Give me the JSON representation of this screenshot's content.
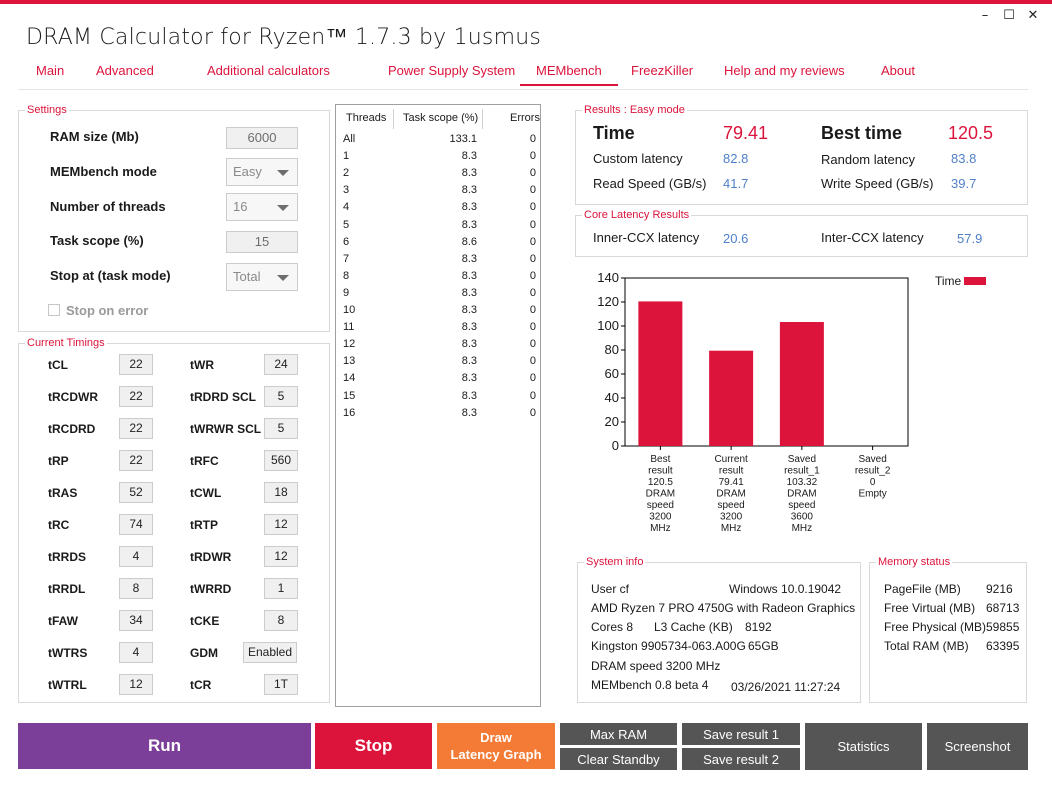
{
  "window": {
    "title": "DRAM Calculator for Ryzen™ 1.7.3 by 1usmus",
    "minimize_glyph": "–",
    "maximize_glyph": "☐",
    "close_glyph": "✕"
  },
  "tabs": [
    {
      "label": "Main"
    },
    {
      "label": "Advanced"
    },
    {
      "label": "Additional calculators"
    },
    {
      "label": "Power Supply System"
    },
    {
      "label": "MEMbench",
      "active": true
    },
    {
      "label": "FreezKiller"
    },
    {
      "label": "Help and my reviews"
    },
    {
      "label": "About"
    }
  ],
  "settings": {
    "title": "Settings",
    "ram_size_label": "RAM size (Mb)",
    "ram_size_value": "6000",
    "mode_label": "MEMbench mode",
    "mode_value": "Easy",
    "threads_label": "Number of threads",
    "threads_value": "16",
    "task_scope_label": "Task scope (%)",
    "task_scope_value": "15",
    "stop_at_label": "Stop at (task mode)",
    "stop_at_value": "Total",
    "stop_on_error_label": "Stop on error",
    "stop_on_error_checked": false
  },
  "timings": {
    "title": "Current Timings",
    "left": [
      {
        "name": "tCL",
        "value": "22"
      },
      {
        "name": "tRCDWR",
        "value": "22"
      },
      {
        "name": "tRCDRD",
        "value": "22"
      },
      {
        "name": "tRP",
        "value": "22"
      },
      {
        "name": "tRAS",
        "value": "52"
      },
      {
        "name": "tRC",
        "value": "74"
      },
      {
        "name": "tRRDS",
        "value": "4"
      },
      {
        "name": "tRRDL",
        "value": "8"
      },
      {
        "name": "tFAW",
        "value": "34"
      },
      {
        "name": "tWTRS",
        "value": "4"
      },
      {
        "name": "tWTRL",
        "value": "12"
      }
    ],
    "right": [
      {
        "name": "tWR",
        "value": "24"
      },
      {
        "name": "tRDRD SCL",
        "value": "5"
      },
      {
        "name": "tWRWR SCL",
        "value": "5"
      },
      {
        "name": "tRFC",
        "value": "560"
      },
      {
        "name": "tCWL",
        "value": "18"
      },
      {
        "name": "tRTP",
        "value": "12"
      },
      {
        "name": "tRDWR",
        "value": "12"
      },
      {
        "name": "tWRRD",
        "value": "1"
      },
      {
        "name": "tCKE",
        "value": "8"
      },
      {
        "name": "GDM",
        "value": "Enabled"
      },
      {
        "name": "tCR",
        "value": "1T"
      }
    ]
  },
  "threads_grid": {
    "headers": {
      "threads": "Threads",
      "task_scope": "Task scope (%)",
      "errors": "Errors"
    },
    "rows": [
      {
        "thread": "All",
        "scope": "133.1",
        "errors": "0"
      },
      {
        "thread": "1",
        "scope": "8.3",
        "errors": "0"
      },
      {
        "thread": "2",
        "scope": "8.3",
        "errors": "0"
      },
      {
        "thread": "3",
        "scope": "8.3",
        "errors": "0"
      },
      {
        "thread": "4",
        "scope": "8.3",
        "errors": "0"
      },
      {
        "thread": "5",
        "scope": "8.3",
        "errors": "0"
      },
      {
        "thread": "6",
        "scope": "8.6",
        "errors": "0"
      },
      {
        "thread": "7",
        "scope": "8.3",
        "errors": "0"
      },
      {
        "thread": "8",
        "scope": "8.3",
        "errors": "0"
      },
      {
        "thread": "9",
        "scope": "8.3",
        "errors": "0"
      },
      {
        "thread": "10",
        "scope": "8.3",
        "errors": "0"
      },
      {
        "thread": "11",
        "scope": "8.3",
        "errors": "0"
      },
      {
        "thread": "12",
        "scope": "8.3",
        "errors": "0"
      },
      {
        "thread": "13",
        "scope": "8.3",
        "errors": "0"
      },
      {
        "thread": "14",
        "scope": "8.3",
        "errors": "0"
      },
      {
        "thread": "15",
        "scope": "8.3",
        "errors": "0"
      },
      {
        "thread": "16",
        "scope": "8.3",
        "errors": "0"
      }
    ]
  },
  "results": {
    "title": "Results : Easy mode",
    "time_label": "Time",
    "time_value": "79.41",
    "best_time_label": "Best time",
    "best_time_value": "120.5",
    "custom_latency_label": "Custom latency",
    "custom_latency_value": "82.8",
    "random_latency_label": "Random latency",
    "random_latency_value": "83.8",
    "read_speed_label": "Read Speed (GB/s)",
    "read_speed_value": "41.7",
    "write_speed_label": "Write Speed (GB/s)",
    "write_speed_value": "39.7"
  },
  "core_latency": {
    "title": "Core Latency Results",
    "inner_label": "Inner-CCX latency",
    "inner_value": "20.6",
    "inter_label": "Inter-CCX latency",
    "inter_value": "57.9"
  },
  "chart_data": {
    "type": "bar",
    "title": "",
    "xlabel": "",
    "ylabel": "",
    "ylim": [
      0,
      140
    ],
    "yticks": [
      "0",
      "20",
      "40",
      "60",
      "80",
      "100",
      "120",
      "140"
    ],
    "grid": false,
    "legend": "top-right",
    "bar_color": "#dc143c",
    "series": [
      {
        "name": "Time",
        "values": [
          120.5,
          79.41,
          103.32,
          0
        ]
      }
    ],
    "categories": [
      [
        "Best",
        "result",
        "120.5",
        "DRAM",
        "speed",
        "3200",
        "MHz"
      ],
      [
        "Current",
        "result",
        "79.41",
        "DRAM",
        "speed",
        "3200",
        "MHz"
      ],
      [
        "Saved",
        "result_1",
        "103.32",
        "DRAM",
        "speed",
        "3600",
        "MHz"
      ],
      [
        "Saved",
        "result_2",
        "0",
        "Empty"
      ]
    ]
  },
  "system_info": {
    "title": "System info",
    "user": "User cf",
    "os": "Windows 10.0.19042",
    "cpu": "AMD Ryzen 7 PRO 4750G with Radeon Graphics",
    "cores": "Cores 8",
    "l3": "L3 Cache (KB)",
    "l3_value": "8192",
    "memory_module": "Kingston 9905734-063.A00G",
    "memory_size": "65GB",
    "dram_speed": "DRAM speed 3200 MHz",
    "membench_version": "MEMbench 0.8 beta 4",
    "datetime": "03/26/2021 11:27:24"
  },
  "memory_status": {
    "title": "Memory status",
    "rows": [
      {
        "label": "PageFile (MB)",
        "value": "9216"
      },
      {
        "label": "Free Virtual (MB)",
        "value": "68713"
      },
      {
        "label": "Free Physical (MB)",
        "value": "59855"
      },
      {
        "label": "Total RAM (MB)",
        "value": "63395"
      }
    ]
  },
  "buttons": {
    "run": "Run",
    "stop": "Stop",
    "draw_line1": "Draw",
    "draw_line2": "Latency Graph",
    "max_ram": "Max RAM",
    "clear_standby": "Clear Standby",
    "save_result_1": "Save result 1",
    "save_result_2": "Save result 2",
    "statistics": "Statistics",
    "screenshot": "Screenshot"
  },
  "colors": {
    "accent": "#dc143c",
    "run": "#7b3f9a",
    "stop": "#dc143c",
    "draw": "#f47b36",
    "gray_button": "#555555",
    "value_blue": "#4f7fc8"
  }
}
